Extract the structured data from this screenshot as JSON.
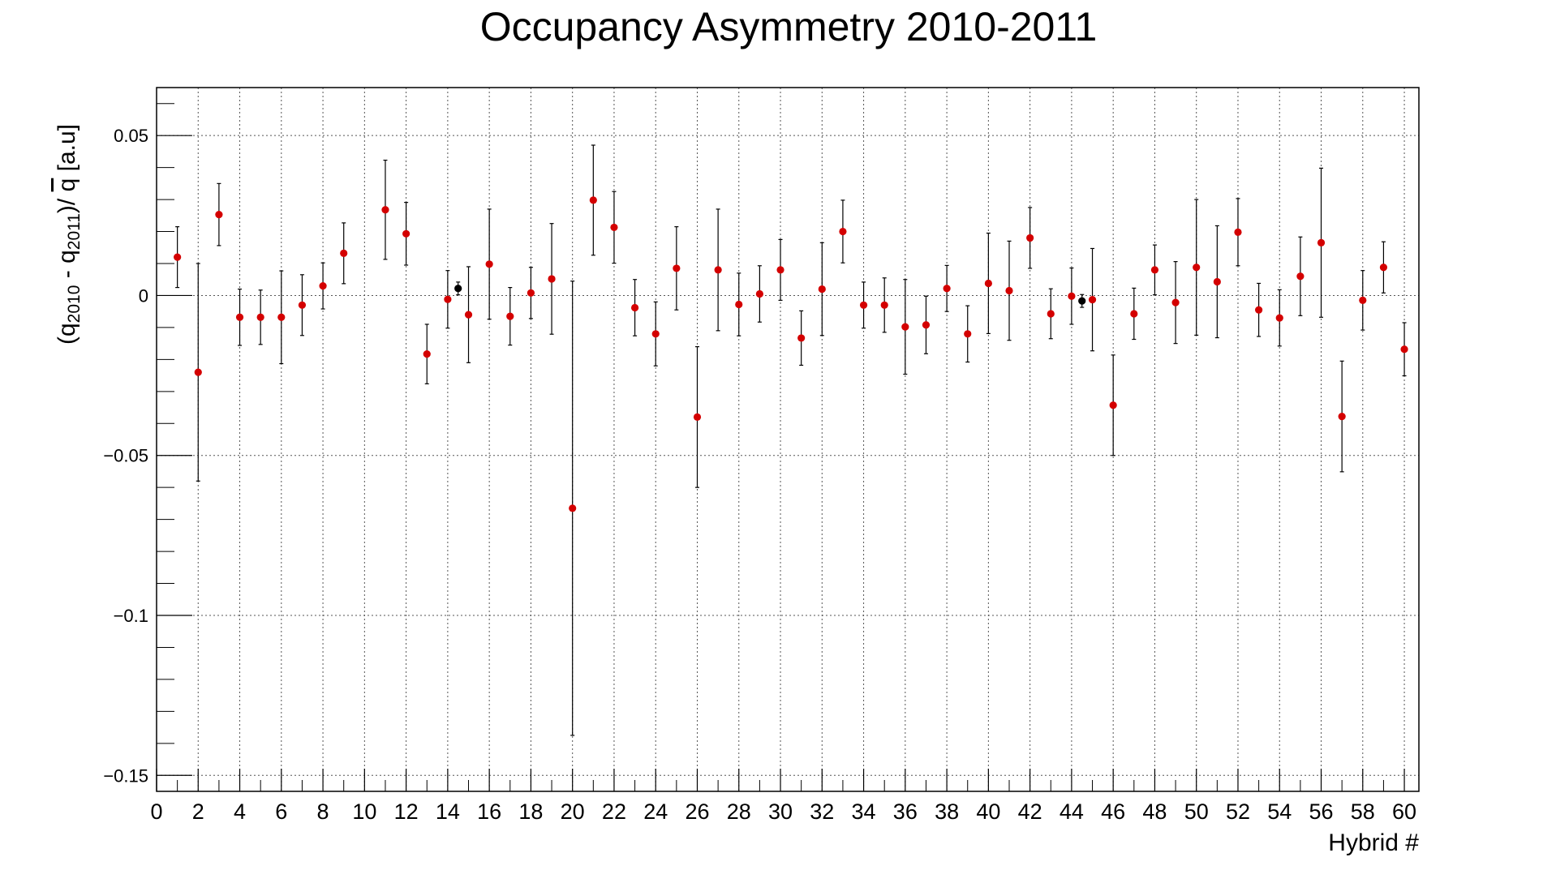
{
  "chart_data": {
    "type": "scatter",
    "title": "Occupancy Asymmetry 2010-2011",
    "xlabel": "Hybrid #",
    "ylabel": {
      "open": "(q",
      "sub1": "2010",
      "minus": " - q",
      "sub2": "2011",
      "close": ")/ ",
      "qbar": "q",
      "unit": "  [a.u]"
    },
    "xlim": [
      0,
      60.7
    ],
    "ylim": [
      -0.155,
      0.065
    ],
    "xticks": [
      "0",
      "2",
      "4",
      "6",
      "8",
      "10",
      "12",
      "14",
      "16",
      "18",
      "20",
      "22",
      "24",
      "26",
      "28",
      "30",
      "32",
      "34",
      "36",
      "38",
      "40",
      "42",
      "44",
      "46",
      "48",
      "50",
      "52",
      "54",
      "56",
      "58",
      "60"
    ],
    "yticks": [
      {
        "value": 0.05,
        "label": "0.05"
      },
      {
        "value": 0,
        "label": "0"
      },
      {
        "value": -0.05,
        "label": "−0.05"
      },
      {
        "value": -0.1,
        "label": "−0.1"
      },
      {
        "value": -0.15,
        "label": "−0.15"
      }
    ],
    "grid": true,
    "series": [
      {
        "color": "#d40000",
        "points": [
          {
            "x": 1,
            "y": 0.012,
            "err": 0.0095
          },
          {
            "x": 2,
            "y": -0.024,
            "err": 0.034
          },
          {
            "x": 3,
            "y": 0.0253,
            "err": 0.0097
          },
          {
            "x": 4,
            "y": -0.0068,
            "err": 0.0088
          },
          {
            "x": 5,
            "y": -0.0068,
            "err": 0.0085
          },
          {
            "x": 6,
            "y": -0.0068,
            "err": 0.0145
          },
          {
            "x": 7,
            "y": -0.003,
            "err": 0.0095
          },
          {
            "x": 8,
            "y": 0.003,
            "err": 0.0072
          },
          {
            "x": 9,
            "y": 0.0132,
            "err": 0.0095
          },
          {
            "x": 11,
            "y": 0.0268,
            "err": 0.0155
          },
          {
            "x": 12,
            "y": 0.0193,
            "err": 0.0098
          },
          {
            "x": 13,
            "y": -0.0183,
            "err": 0.0093
          },
          {
            "x": 14,
            "y": -0.0012,
            "err": 0.009
          },
          {
            "x": 15,
            "y": -0.006,
            "err": 0.015
          },
          {
            "x": 16,
            "y": 0.0098,
            "err": 0.0172
          },
          {
            "x": 17,
            "y": -0.0065,
            "err": 0.009
          },
          {
            "x": 18,
            "y": 0.0008,
            "err": 0.008
          },
          {
            "x": 19,
            "y": 0.0052,
            "err": 0.0173
          },
          {
            "x": 20,
            "y": -0.0665,
            "err": 0.071
          },
          {
            "x": 21,
            "y": 0.0298,
            "err": 0.0172
          },
          {
            "x": 22,
            "y": 0.0213,
            "err": 0.0112
          },
          {
            "x": 23,
            "y": -0.0038,
            "err": 0.0088
          },
          {
            "x": 24,
            "y": -0.012,
            "err": 0.01
          },
          {
            "x": 25,
            "y": 0.0085,
            "err": 0.013
          },
          {
            "x": 26,
            "y": -0.038,
            "err": 0.022
          },
          {
            "x": 27,
            "y": 0.008,
            "err": 0.019
          },
          {
            "x": 28,
            "y": -0.0028,
            "err": 0.0098
          },
          {
            "x": 29,
            "y": 0.0005,
            "err": 0.0088
          },
          {
            "x": 30,
            "y": 0.008,
            "err": 0.0095
          },
          {
            "x": 31,
            "y": -0.0133,
            "err": 0.0085
          },
          {
            "x": 32,
            "y": 0.002,
            "err": 0.0145
          },
          {
            "x": 33,
            "y": 0.02,
            "err": 0.0098
          },
          {
            "x": 34,
            "y": -0.003,
            "err": 0.0072
          },
          {
            "x": 35,
            "y": -0.003,
            "err": 0.0085
          },
          {
            "x": 36,
            "y": -0.0098,
            "err": 0.0148
          },
          {
            "x": 37,
            "y": -0.0092,
            "err": 0.009
          },
          {
            "x": 38,
            "y": 0.0022,
            "err": 0.0072
          },
          {
            "x": 39,
            "y": -0.012,
            "err": 0.0088
          },
          {
            "x": 40,
            "y": 0.0038,
            "err": 0.0157
          },
          {
            "x": 41,
            "y": 0.0015,
            "err": 0.0155
          },
          {
            "x": 42,
            "y": 0.018,
            "err": 0.0095
          },
          {
            "x": 43,
            "y": -0.0057,
            "err": 0.0078
          },
          {
            "x": 44,
            "y": -0.0002,
            "err": 0.0088
          },
          {
            "x": 45,
            "y": -0.0013,
            "err": 0.016
          },
          {
            "x": 46,
            "y": -0.0343,
            "err": 0.0157
          },
          {
            "x": 47,
            "y": -0.0057,
            "err": 0.008
          },
          {
            "x": 48,
            "y": 0.008,
            "err": 0.0078
          },
          {
            "x": 49,
            "y": -0.0022,
            "err": 0.0128
          },
          {
            "x": 50,
            "y": 0.0088,
            "err": 0.0212
          },
          {
            "x": 51,
            "y": 0.0043,
            "err": 0.0175
          },
          {
            "x": 52,
            "y": 0.0198,
            "err": 0.0105
          },
          {
            "x": 53,
            "y": -0.0045,
            "err": 0.0083
          },
          {
            "x": 54,
            "y": -0.007,
            "err": 0.0088
          },
          {
            "x": 55,
            "y": 0.006,
            "err": 0.0123
          },
          {
            "x": 56,
            "y": 0.0165,
            "err": 0.0233
          },
          {
            "x": 57,
            "y": -0.0378,
            "err": 0.0173
          },
          {
            "x": 58,
            "y": -0.0015,
            "err": 0.0093
          },
          {
            "x": 59,
            "y": 0.0088,
            "err": 0.008
          },
          {
            "x": 60,
            "y": -0.0168,
            "err": 0.0083
          }
        ]
      },
      {
        "color": "#000000",
        "points": [
          {
            "x": 14.5,
            "y": 0.0022,
            "err": 0.002
          },
          {
            "x": 44.5,
            "y": -0.0017,
            "err": 0.002
          }
        ]
      }
    ]
  }
}
